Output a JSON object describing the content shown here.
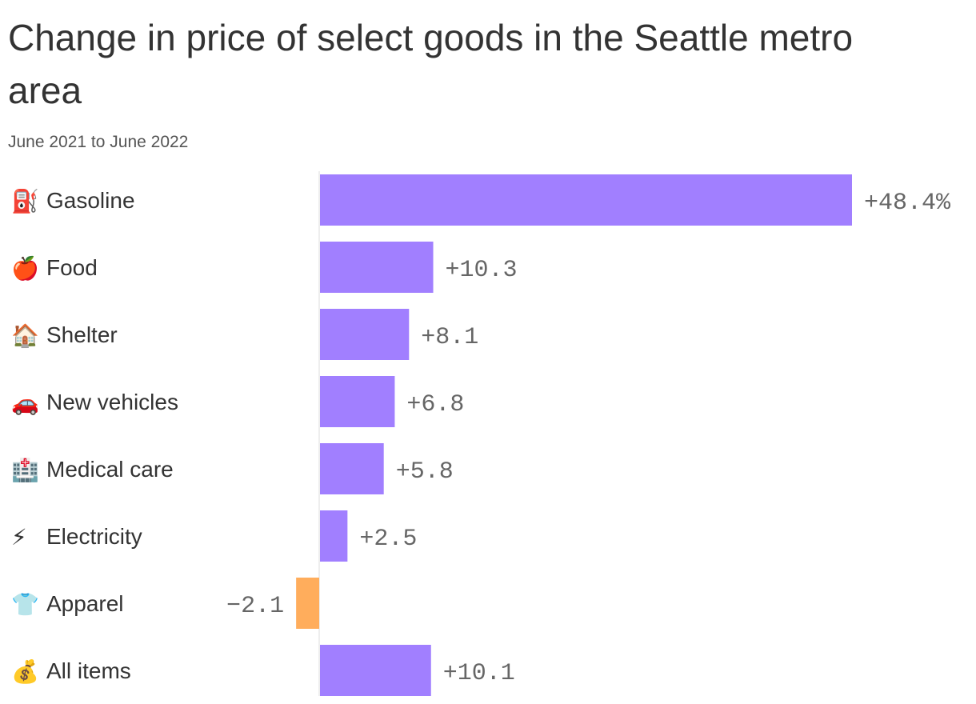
{
  "title": "Change in price of select goods in the Seattle metro area",
  "subtitle": "June 2021 to June 2022",
  "colors": {
    "positive": "#a17fff",
    "negative": "#ffad5c",
    "axis": "#dddddd",
    "text": "#333333",
    "value_text": "#666666"
  },
  "chart_data": {
    "type": "bar",
    "orientation": "horizontal",
    "title": "Change in price of select goods in the Seattle metro area",
    "subtitle": "June 2021 to June 2022",
    "categories": [
      {
        "icon": "fuel-pump-icon",
        "glyph": "⛽",
        "label": "Gasoline"
      },
      {
        "icon": "apple-icon",
        "glyph": "🍎",
        "label": "Food"
      },
      {
        "icon": "house-icon",
        "glyph": "🏠",
        "label": "Shelter"
      },
      {
        "icon": "car-icon",
        "glyph": "🚗",
        "label": "New vehicles"
      },
      {
        "icon": "hospital-icon",
        "glyph": "🏥",
        "label": "Medical care"
      },
      {
        "icon": "lightning-icon",
        "glyph": "⚡",
        "label": "Electricity"
      },
      {
        "icon": "tshirt-icon",
        "glyph": "👕",
        "label": "Apparel"
      },
      {
        "icon": "money-bag-icon",
        "glyph": "💰",
        "label": "All items"
      }
    ],
    "values": [
      48.4,
      10.3,
      8.1,
      6.8,
      5.8,
      2.5,
      -2.1,
      10.1
    ],
    "value_labels": [
      "+48.4%",
      "+10.3",
      "+8.1",
      "+6.8",
      "+5.8",
      "+2.5",
      "−2.1",
      "+10.1"
    ],
    "xlim": [
      -2.1,
      48.4
    ],
    "grid": false,
    "legend": "none"
  }
}
